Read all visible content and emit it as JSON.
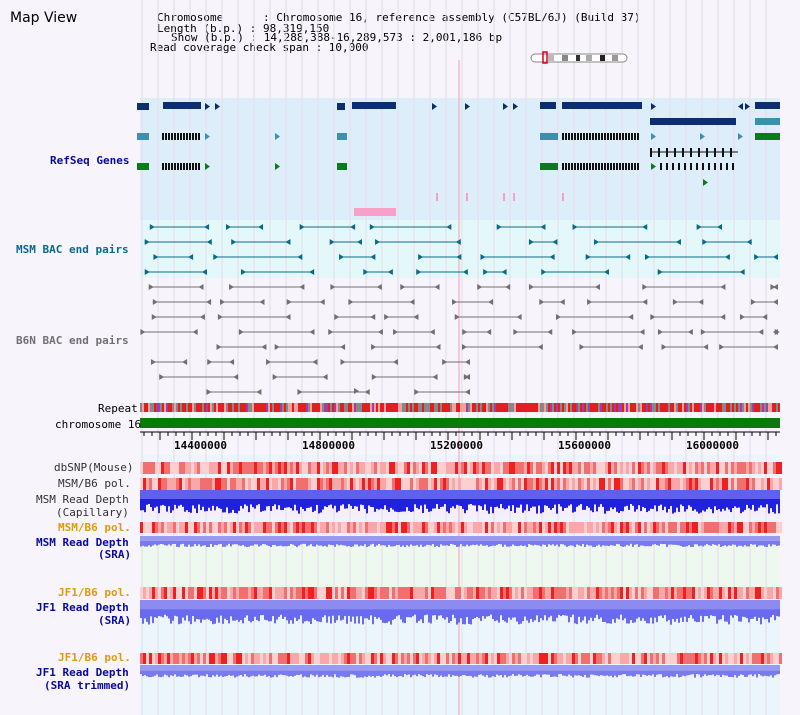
{
  "title": "Map View",
  "info": {
    "chromosome": "Chromosome      : Chromosome 16, reference assembly (C57BL/6J) (Build 37)",
    "length": "Length (b.p.) : 98,319,150",
    "show": "Show (b.p.) : 14,288,388-16,289,573 : 2,001,186 bp",
    "span": "Read coverage check span : 10,000"
  },
  "tracks": {
    "refseq": "RefSeq Genes",
    "msm_bac": "MSM BAC end pairs",
    "b6n_bac": "B6N BAC end pairs",
    "repeat": "Repeat",
    "chrom": "chromosome 16",
    "dbsnp": "dbSNP(Mouse)",
    "msm_b6_pol": "MSM/B6 pol.",
    "msm_depth_1": "MSM Read Depth",
    "msm_depth_2": "(Capillary)",
    "msm_b6_pol2": "MSM/B6 pol.",
    "msm_sra_1": "MSM Read Depth",
    "msm_sra_2": "(SRA)",
    "jf1_pol": "JF1/B6 pol.",
    "jf1_sra_1": "JF1 Read Depth",
    "jf1_sra_2": "(SRA)",
    "jf1_pol2": "JF1/B6 pol.",
    "jf1_trim_1": "JF1 Read Depth",
    "jf1_trim_2": "(SRA trimmed)"
  },
  "axis": {
    "ticks": [
      "14400000",
      "14800000",
      "15200000",
      "15600000",
      "16000000"
    ]
  },
  "colors": {
    "refseq_bg": "#ddeefa",
    "msm_bg": "#e4f8fa",
    "gene_dark": "#0a2e6e",
    "gene_teal": "#3d8fb0",
    "gene_green": "#0a7a1a",
    "label_blue": "#0a0aa0",
    "label_teal": "#0a6a8a",
    "label_orange": "#e09a10",
    "chrom_green": "#0a7a0a"
  }
}
